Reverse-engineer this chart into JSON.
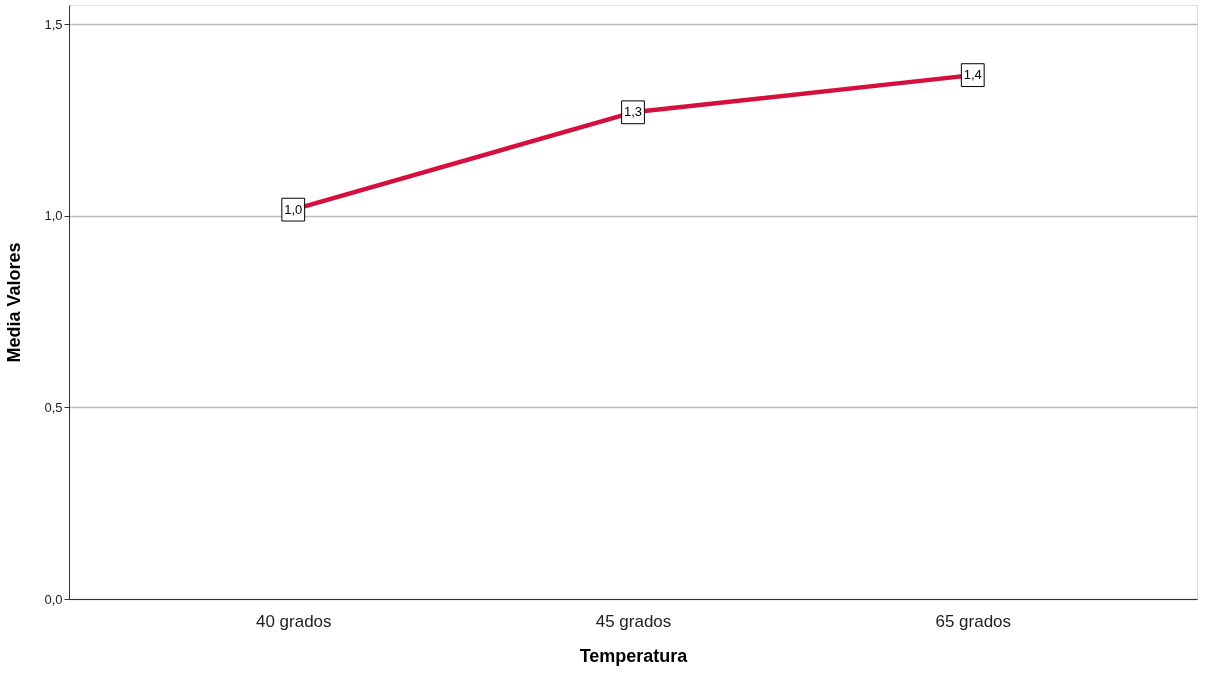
{
  "chart_data": {
    "type": "line",
    "xlabel": "Temperatura",
    "ylabel": "Media Valores",
    "categories": [
      "40 grados",
      "45 grados",
      "65 grados"
    ],
    "series": [
      {
        "color": "#d5103f",
        "values": [
          1.016,
          1.27,
          1.367
        ],
        "value_labels": [
          "1,0",
          "1,3",
          "1,4"
        ]
      }
    ],
    "ylim": [
      0,
      1.55
    ],
    "yticks": [
      {
        "value": 0,
        "label": "0,0"
      },
      {
        "value": 0.5,
        "label": "0,5"
      },
      {
        "value": 1.0,
        "label": "1,0"
      },
      {
        "value": 1.5,
        "label": "1,5"
      }
    ],
    "grid": "y",
    "marker": "square",
    "line_style": "solid",
    "legend": false
  }
}
